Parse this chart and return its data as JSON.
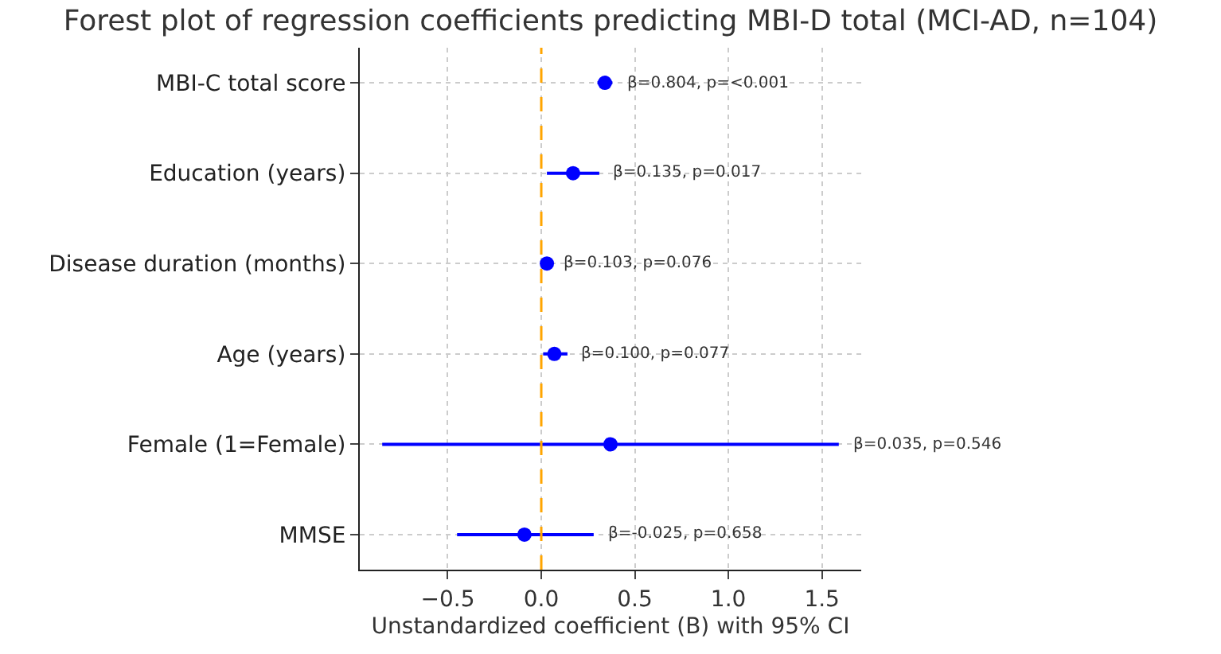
{
  "chart_data": {
    "type": "scatter",
    "orientation": "horizontal",
    "title": "Forest plot of regression coefficients predicting MBI-D total (MCI-AD, n=104)",
    "xlabel": "Unstandardized coefficient (B) with 95% CI",
    "categories": [
      "MBI-C total score",
      "Education (years)",
      "Disease duration (months)",
      "Age (years)",
      "Female (1=Female)",
      "MMSE"
    ],
    "series": [
      {
        "color": "#0000ff",
        "values": [
          0.34,
          0.17,
          0.03,
          0.07,
          0.37,
          -0.09
        ],
        "errors": [
          [
            0.3,
            0.38
          ],
          [
            0.03,
            0.31
          ],
          [
            0.02,
            0.04
          ],
          [
            0.01,
            0.14
          ],
          [
            -0.85,
            1.59
          ],
          [
            -0.45,
            0.28
          ]
        ]
      }
    ],
    "xlim": [
      -0.97,
      1.71
    ],
    "xticks": [
      {
        "value": -0.5,
        "label": "−0.5"
      },
      {
        "value": 0,
        "label": "0.0"
      },
      {
        "value": 0.5,
        "label": "0.5"
      },
      {
        "value": 1,
        "label": "1.0"
      },
      {
        "value": 1.5,
        "label": "1.5"
      }
    ],
    "ref_lines": [
      {
        "axis": "x",
        "value": 0,
        "color": "#ffa500",
        "line_style": "dashed"
      }
    ],
    "annotations": [
      "β=0.804, p=<0.001",
      "β=0.135, p=0.017",
      "β=0.103, p=0.076",
      "β=0.100, p=0.077",
      "β=0.035, p=0.546",
      "β=-0.025, p=0.658"
    ],
    "grid": true,
    "marker": "circle"
  }
}
